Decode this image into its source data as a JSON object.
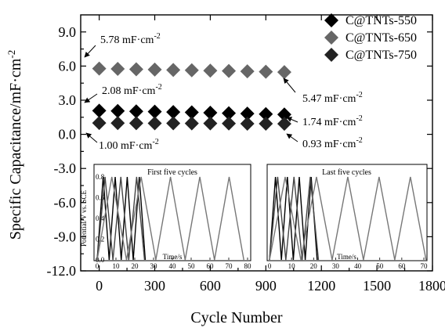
{
  "chart_data": {
    "type": "scatter",
    "xlabel": "Cycle Number",
    "ylabel": "Specific Capacitance/mF·cm",
    "ylabel_sup": "-2",
    "xlim": [
      -100,
      1800
    ],
    "ylim": [
      -12.0,
      10.5
    ],
    "xticks": [
      "0",
      "300",
      "600",
      "900",
      "1200",
      "1500",
      "1800"
    ],
    "xtick_values": [
      0,
      300,
      600,
      900,
      1200,
      1500,
      1800
    ],
    "yticks": [
      "9.0",
      "6.0",
      "3.0",
      "0.0",
      "-3.0",
      "-6.0",
      "-9.0",
      "-12.0"
    ],
    "ytick_values": [
      9,
      6,
      3,
      0,
      -3,
      -6,
      -9,
      -12
    ],
    "legend_position": "top-right",
    "series": [
      {
        "name": "C@TNTs-550",
        "color": "#000000",
        "x": [
          0,
          100,
          200,
          300,
          400,
          500,
          600,
          700,
          800,
          900,
          1000
        ],
        "y": [
          2.08,
          2.05,
          2.02,
          1.99,
          1.96,
          1.93,
          1.9,
          1.86,
          1.82,
          1.78,
          1.74
        ]
      },
      {
        "name": "C@TNTs-650",
        "color": "#666666",
        "x": [
          0,
          100,
          200,
          300,
          400,
          500,
          600,
          700,
          800,
          900,
          1000
        ],
        "y": [
          5.78,
          5.75,
          5.72,
          5.69,
          5.66,
          5.63,
          5.6,
          5.57,
          5.54,
          5.5,
          5.47
        ]
      },
      {
        "name": "C@TNTs-750",
        "color": "#222222",
        "x": [
          0,
          100,
          200,
          300,
          400,
          500,
          600,
          700,
          800,
          900,
          1000
        ],
        "y": [
          1.0,
          0.99,
          0.98,
          0.97,
          0.97,
          0.96,
          0.96,
          0.95,
          0.94,
          0.94,
          0.93
        ]
      }
    ],
    "annotations": [
      {
        "text": "5.78 mF·cm",
        "sup": "-2",
        "x": 0,
        "y": 5.78
      },
      {
        "text": "2.08 mF·cm",
        "sup": "-2",
        "x": 0,
        "y": 2.08
      },
      {
        "text": "1.00 mF·cm",
        "sup": "-2",
        "x": 0,
        "y": 1.0
      },
      {
        "text": "5.47 mF·cm",
        "sup": "-2",
        "x": 1000,
        "y": 5.47
      },
      {
        "text": "1.74 mF·cm",
        "sup": "-2",
        "x": 1000,
        "y": 1.74
      },
      {
        "text": "0.93 mF·cm",
        "sup": "-2",
        "x": 1000,
        "y": 0.93
      }
    ],
    "insets": [
      {
        "title": "First five cycles",
        "xlabel": "Time/s",
        "ylabel": "Potential/V vs. SCE",
        "xlim": [
          0,
          80
        ],
        "ylim": [
          0.0,
          0.8
        ],
        "xticks": [
          "0",
          "10",
          "20",
          "30",
          "40",
          "50",
          "60",
          "70",
          "80"
        ],
        "yticks": [
          "0.0",
          "0.2",
          "0.4",
          "0.6",
          "0.8"
        ],
        "series": [
          {
            "color": "#000000",
            "period": 6.4,
            "cycles": 4
          },
          {
            "color": "#444444",
            "period": 8.4,
            "cycles": 3
          },
          {
            "color": "#777777",
            "period": 15.6,
            "cycles": 5
          }
        ]
      },
      {
        "title": "Last five cycles",
        "xlabel": "Time/s",
        "ylabel": "",
        "xlim": [
          0,
          70
        ],
        "ylim": [
          0.0,
          0.8
        ],
        "xticks": [
          "0",
          "10",
          "20",
          "30",
          "40",
          "50",
          "60",
          "70"
        ],
        "yticks": [],
        "series": [
          {
            "color": "#000000",
            "period": 5.4,
            "cycles": 4
          },
          {
            "color": "#444444",
            "period": 7.4,
            "cycles": 3
          },
          {
            "color": "#777777",
            "period": 14.2,
            "cycles": 5
          }
        ]
      }
    ]
  }
}
